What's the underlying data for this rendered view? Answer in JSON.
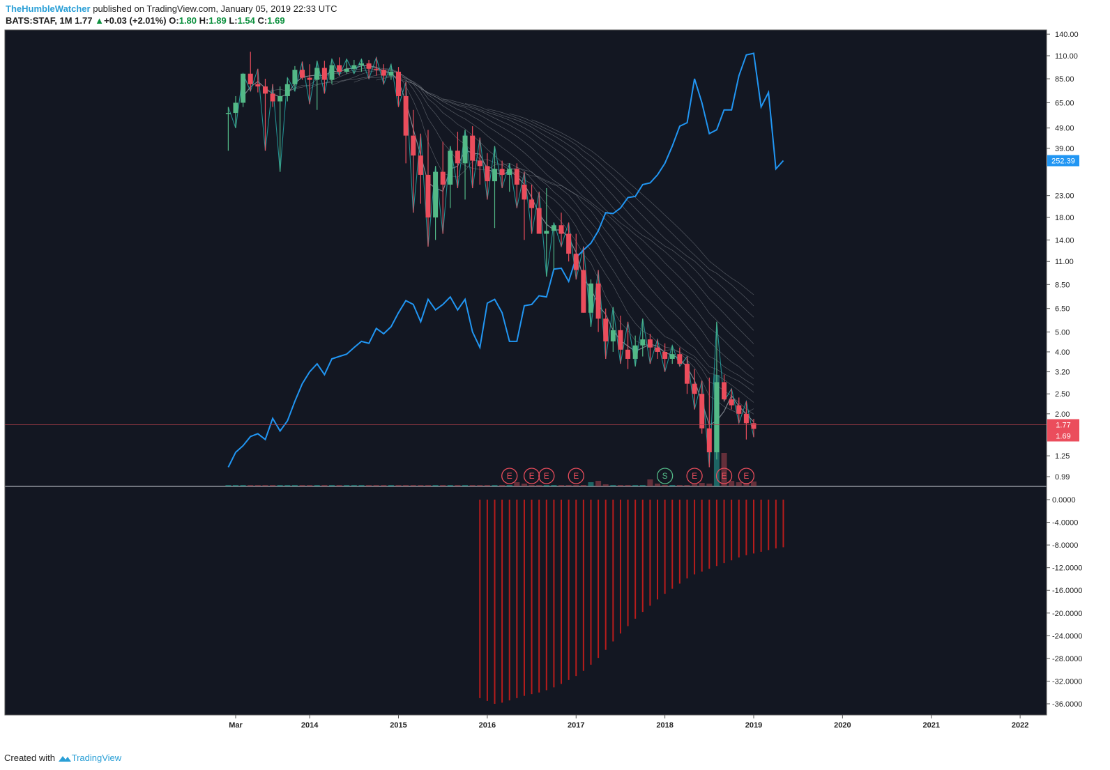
{
  "header": {
    "author": "TheHumbleWatcher",
    "published_text": "published on TradingView.com, January 05, 2019 22:33 UTC",
    "symbol": "BATS:STAF, 1M",
    "last": "1.77",
    "change": "+0.03 (+2.01%)",
    "o_label": "O:",
    "o": "1.80",
    "h_label": "H:",
    "h": "1.89",
    "l_label": "L:",
    "l": "1.54",
    "c_label": "C:",
    "c": "1.69"
  },
  "footer": {
    "created_with": "Created with",
    "brand": "TradingView"
  },
  "colors": {
    "background": "#131722",
    "up": "#53b987",
    "down": "#eb4d5c",
    "overlay_line": "#2196f3",
    "zigzag": "#26a6a6",
    "ma": "#8a8f98",
    "histogram": "#b71c1c",
    "last_price_tag": "#eb4d5c",
    "overlay_tag": "#2196f3"
  },
  "chart_data": {
    "type": "candlestick",
    "timeframe": "1M",
    "y_scale": "log",
    "y_ticks": [
      140,
      110,
      85,
      65,
      49,
      39,
      23,
      18,
      14,
      11,
      8.5,
      6.5,
      5,
      4,
      3.2,
      2.5,
      2,
      1.25,
      0.99
    ],
    "y_tick_labels": [
      "140.00",
      "110.00",
      "85.00",
      "65.00",
      "49.00",
      "39.00",
      "23.00",
      "18.00",
      "14.00",
      "11.00",
      "8.50",
      "6.50",
      "5.00",
      "4.00",
      "3.20",
      "2.50",
      "2.00",
      "1.25",
      "0.99"
    ],
    "x_ticks": [
      {
        "label": "Mar",
        "date": "2013-03"
      },
      {
        "label": "2014",
        "date": "2014-01"
      },
      {
        "label": "2015",
        "date": "2015-01"
      },
      {
        "label": "2016",
        "date": "2016-01"
      },
      {
        "label": "2017",
        "date": "2017-01"
      },
      {
        "label": "2018",
        "date": "2018-01"
      },
      {
        "label": "2019",
        "date": "2019-01"
      },
      {
        "label": "2020",
        "date": "2020-01"
      },
      {
        "label": "2021",
        "date": "2021-01"
      },
      {
        "label": "2022",
        "date": "2022-01"
      }
    ],
    "price_tags": [
      {
        "label": "1.77",
        "value": 1.77,
        "color": "#eb4d5c"
      },
      {
        "label": "1.69",
        "value": 1.69,
        "color": "#eb4d5c"
      },
      {
        "label": "252.39",
        "value": 34,
        "color": "#2196f3"
      }
    ],
    "last_price_line": 1.77,
    "candles": [
      {
        "date": "2013-02",
        "o": 58,
        "h": 62,
        "l": 38,
        "c": 58
      },
      {
        "date": "2013-03",
        "o": 58,
        "h": 70,
        "l": 49,
        "c": 65
      },
      {
        "date": "2013-04",
        "o": 65,
        "h": 90,
        "l": 62,
        "c": 90
      },
      {
        "date": "2013-05",
        "o": 90,
        "h": 115,
        "l": 74,
        "c": 80
      },
      {
        "date": "2013-06",
        "o": 80,
        "h": 95,
        "l": 73,
        "c": 78
      },
      {
        "date": "2013-07",
        "o": 78,
        "h": 85,
        "l": 38,
        "c": 72
      },
      {
        "date": "2013-08",
        "o": 72,
        "h": 80,
        "l": 62,
        "c": 66
      },
      {
        "date": "2013-09",
        "o": 66,
        "h": 78,
        "l": 30,
        "c": 70
      },
      {
        "date": "2013-10",
        "o": 70,
        "h": 86,
        "l": 66,
        "c": 80
      },
      {
        "date": "2013-11",
        "o": 80,
        "h": 98,
        "l": 74,
        "c": 94
      },
      {
        "date": "2013-12",
        "o": 94,
        "h": 103,
        "l": 84,
        "c": 86
      },
      {
        "date": "2014-01",
        "o": 86,
        "h": 100,
        "l": 64,
        "c": 84
      },
      {
        "date": "2014-02",
        "o": 84,
        "h": 104,
        "l": 60,
        "c": 96
      },
      {
        "date": "2014-03",
        "o": 96,
        "h": 104,
        "l": 72,
        "c": 84
      },
      {
        "date": "2014-04",
        "o": 84,
        "h": 106,
        "l": 80,
        "c": 99
      },
      {
        "date": "2014-05",
        "o": 99,
        "h": 108,
        "l": 88,
        "c": 92
      },
      {
        "date": "2014-06",
        "o": 92,
        "h": 106,
        "l": 90,
        "c": 95
      },
      {
        "date": "2014-07",
        "o": 95,
        "h": 105,
        "l": 90,
        "c": 99
      },
      {
        "date": "2014-08",
        "o": 99,
        "h": 106,
        "l": 92,
        "c": 101
      },
      {
        "date": "2014-09",
        "o": 101,
        "h": 105,
        "l": 85,
        "c": 95
      },
      {
        "date": "2014-10",
        "o": 95,
        "h": 108,
        "l": 88,
        "c": 94
      },
      {
        "date": "2014-11",
        "o": 94,
        "h": 100,
        "l": 80,
        "c": 88
      },
      {
        "date": "2014-12",
        "o": 88,
        "h": 100,
        "l": 84,
        "c": 92
      },
      {
        "date": "2015-01",
        "o": 92,
        "h": 97,
        "l": 62,
        "c": 70
      },
      {
        "date": "2015-02",
        "o": 70,
        "h": 82,
        "l": 33,
        "c": 45
      },
      {
        "date": "2015-03",
        "o": 45,
        "h": 60,
        "l": 19,
        "c": 36
      },
      {
        "date": "2015-04",
        "o": 36,
        "h": 46,
        "l": 21,
        "c": 29
      },
      {
        "date": "2015-05",
        "o": 29,
        "h": 48,
        "l": 13,
        "c": 18
      },
      {
        "date": "2015-06",
        "o": 18,
        "h": 32,
        "l": 14,
        "c": 30
      },
      {
        "date": "2015-07",
        "o": 30,
        "h": 42,
        "l": 15,
        "c": 26
      },
      {
        "date": "2015-08",
        "o": 26,
        "h": 40,
        "l": 20,
        "c": 38
      },
      {
        "date": "2015-09",
        "o": 38,
        "h": 47,
        "l": 25,
        "c": 33
      },
      {
        "date": "2015-10",
        "o": 33,
        "h": 48,
        "l": 22,
        "c": 45
      },
      {
        "date": "2015-11",
        "o": 45,
        "h": 50,
        "l": 25,
        "c": 34
      },
      {
        "date": "2015-12",
        "o": 34,
        "h": 44,
        "l": 26,
        "c": 32
      },
      {
        "date": "2016-01",
        "o": 32,
        "h": 37,
        "l": 22,
        "c": 27
      },
      {
        "date": "2016-02",
        "o": 27,
        "h": 40,
        "l": 16,
        "c": 31
      },
      {
        "date": "2016-03",
        "o": 31,
        "h": 34,
        "l": 25,
        "c": 29
      },
      {
        "date": "2016-04",
        "o": 29,
        "h": 33,
        "l": 24,
        "c": 31
      },
      {
        "date": "2016-05",
        "o": 31,
        "h": 33,
        "l": 20,
        "c": 26
      },
      {
        "date": "2016-06",
        "o": 26,
        "h": 30,
        "l": 14,
        "c": 22
      },
      {
        "date": "2016-07",
        "o": 22,
        "h": 26,
        "l": 15,
        "c": 20
      },
      {
        "date": "2016-08",
        "o": 20,
        "h": 24,
        "l": 15,
        "c": 15
      },
      {
        "date": "2016-09",
        "o": 15,
        "h": 25,
        "l": 9.3,
        "c": 15.5
      },
      {
        "date": "2016-10",
        "o": 15.5,
        "h": 17,
        "l": 10,
        "c": 16.5
      },
      {
        "date": "2016-11",
        "o": 16.5,
        "h": 19,
        "l": 13,
        "c": 15
      },
      {
        "date": "2016-12",
        "o": 15,
        "h": 17,
        "l": 11,
        "c": 12
      },
      {
        "date": "2017-01",
        "o": 12,
        "h": 15,
        "l": 9,
        "c": 10
      },
      {
        "date": "2017-02",
        "o": 10,
        "h": 13,
        "l": 6.2,
        "c": 6.2
      },
      {
        "date": "2017-03",
        "o": 6.2,
        "h": 9,
        "l": 5.3,
        "c": 8.6
      },
      {
        "date": "2017-04",
        "o": 8.6,
        "h": 10,
        "l": 5,
        "c": 5.8
      },
      {
        "date": "2017-05",
        "o": 5.8,
        "h": 6.5,
        "l": 3.7,
        "c": 4.5
      },
      {
        "date": "2017-06",
        "o": 4.5,
        "h": 6.6,
        "l": 4,
        "c": 5.1
      },
      {
        "date": "2017-07",
        "o": 5.1,
        "h": 6,
        "l": 3.5,
        "c": 4.1
      },
      {
        "date": "2017-08",
        "o": 4.1,
        "h": 5.6,
        "l": 3.3,
        "c": 3.7
      },
      {
        "date": "2017-09",
        "o": 3.7,
        "h": 4.8,
        "l": 3.4,
        "c": 4.3
      },
      {
        "date": "2017-10",
        "o": 4.3,
        "h": 5.8,
        "l": 3.8,
        "c": 4.6
      },
      {
        "date": "2017-11",
        "o": 4.6,
        "h": 4.9,
        "l": 3.5,
        "c": 4.2
      },
      {
        "date": "2017-12",
        "o": 4.2,
        "h": 4.6,
        "l": 3.7,
        "c": 4
      },
      {
        "date": "2018-01",
        "o": 4,
        "h": 4.4,
        "l": 3.2,
        "c": 3.7
      },
      {
        "date": "2018-02",
        "o": 3.7,
        "h": 4.3,
        "l": 3.5,
        "c": 3.9
      },
      {
        "date": "2018-03",
        "o": 3.9,
        "h": 4.2,
        "l": 3.4,
        "c": 3.5
      },
      {
        "date": "2018-04",
        "o": 3.5,
        "h": 3.8,
        "l": 2.5,
        "c": 2.8
      },
      {
        "date": "2018-05",
        "o": 2.8,
        "h": 3.3,
        "l": 2.1,
        "c": 2.5
      },
      {
        "date": "2018-06",
        "o": 2.5,
        "h": 2.9,
        "l": 1.6,
        "c": 1.7
      },
      {
        "date": "2018-07",
        "o": 1.7,
        "h": 3,
        "l": 1.1,
        "c": 1.3
      },
      {
        "date": "2018-08",
        "o": 1.3,
        "h": 5.6,
        "l": 1.2,
        "c": 2.85
      },
      {
        "date": "2018-09",
        "o": 2.85,
        "h": 3.1,
        "l": 2.3,
        "c": 2.35
      },
      {
        "date": "2018-10",
        "o": 2.35,
        "h": 2.65,
        "l": 2.1,
        "c": 2.2
      },
      {
        "date": "2018-11",
        "o": 2.2,
        "h": 2.4,
        "l": 1.8,
        "c": 2
      },
      {
        "date": "2018-12",
        "o": 2,
        "h": 2.3,
        "l": 1.5,
        "c": 1.8
      },
      {
        "date": "2019-01",
        "o": 1.8,
        "h": 1.89,
        "l": 1.54,
        "c": 1.69
      }
    ],
    "overlay_line": {
      "name": "",
      "points": [
        [
          "2013-02",
          1.1
        ],
        [
          "2013-03",
          1.3
        ],
        [
          "2013-04",
          1.4
        ],
        [
          "2013-05",
          1.55
        ],
        [
          "2013-06",
          1.6
        ],
        [
          "2013-07",
          1.5
        ],
        [
          "2013-08",
          1.9
        ],
        [
          "2013-09",
          1.65
        ],
        [
          "2013-10",
          1.85
        ],
        [
          "2013-11",
          2.3
        ],
        [
          "2013-12",
          2.8
        ],
        [
          "2014-01",
          3.2
        ],
        [
          "2014-02",
          3.5
        ],
        [
          "2014-03",
          3.1
        ],
        [
          "2014-04",
          3.7
        ],
        [
          "2014-05",
          3.8
        ],
        [
          "2014-06",
          3.9
        ],
        [
          "2014-07",
          4.2
        ],
        [
          "2014-08",
          4.5
        ],
        [
          "2014-09",
          4.4
        ],
        [
          "2014-10",
          5.2
        ],
        [
          "2014-11",
          4.9
        ],
        [
          "2014-12",
          5.3
        ],
        [
          "2015-01",
          6.2
        ],
        [
          "2015-02",
          7.1
        ],
        [
          "2015-03",
          6.8
        ],
        [
          "2015-04",
          5.6
        ],
        [
          "2015-05",
          7.2
        ],
        [
          "2015-06",
          6.4
        ],
        [
          "2015-07",
          6.8
        ],
        [
          "2015-08",
          7.4
        ],
        [
          "2015-09",
          6.4
        ],
        [
          "2015-10",
          7.2
        ],
        [
          "2015-11",
          5.0
        ],
        [
          "2015-12",
          4.2
        ],
        [
          "2016-01",
          6.9
        ],
        [
          "2016-02",
          7.2
        ],
        [
          "2016-03",
          6.2
        ],
        [
          "2016-04",
          4.5
        ],
        [
          "2016-05",
          4.5
        ],
        [
          "2016-06",
          6.7
        ],
        [
          "2016-07",
          6.8
        ],
        [
          "2016-08",
          7.5
        ],
        [
          "2016-09",
          7.4
        ],
        [
          "2016-10",
          10.1
        ],
        [
          "2016-11",
          10.2
        ],
        [
          "2016-12",
          8.8
        ],
        [
          "2017-01",
          11.5
        ],
        [
          "2017-02",
          12.5
        ],
        [
          "2017-03",
          13.5
        ],
        [
          "2017-04",
          15.5
        ],
        [
          "2017-05",
          19
        ],
        [
          "2017-06",
          18.8
        ],
        [
          "2017-07",
          20
        ],
        [
          "2017-08",
          22.5
        ],
        [
          "2017-09",
          22.8
        ],
        [
          "2017-10",
          26
        ],
        [
          "2017-11",
          26.5
        ],
        [
          "2017-12",
          29
        ],
        [
          "2018-01",
          33
        ],
        [
          "2018-02",
          40
        ],
        [
          "2018-03",
          50
        ],
        [
          "2018-04",
          52
        ],
        [
          "2018-05",
          85
        ],
        [
          "2018-06",
          65
        ],
        [
          "2018-07",
          46
        ],
        [
          "2018-08",
          48
        ],
        [
          "2018-09",
          60
        ],
        [
          "2018-10",
          60
        ],
        [
          "2018-11",
          88
        ],
        [
          "2018-12",
          111
        ],
        [
          "2019-01",
          113
        ],
        [
          "2019-02",
          62
        ],
        [
          "2019-03",
          73
        ],
        [
          "2019-04",
          31
        ],
        [
          "2019-05",
          34
        ]
      ]
    },
    "events": [
      {
        "label": "E",
        "date": "2016-04",
        "kind": "earnings"
      },
      {
        "label": "E",
        "date": "2016-07",
        "kind": "earnings"
      },
      {
        "label": "E",
        "date": "2016-09",
        "kind": "earnings"
      },
      {
        "label": "E",
        "date": "2017-01",
        "kind": "earnings"
      },
      {
        "label": "S",
        "date": "2018-01",
        "kind": "split"
      },
      {
        "label": "E",
        "date": "2018-05",
        "kind": "earnings"
      },
      {
        "label": "E",
        "date": "2018-09",
        "kind": "earnings"
      },
      {
        "label": "E",
        "date": "2018-12",
        "kind": "earnings"
      }
    ],
    "oscillator": {
      "type": "histogram",
      "y_ticks": [
        0,
        -4,
        -8,
        -12,
        -16,
        -20,
        -24,
        -28,
        -32,
        -36
      ],
      "y_tick_labels": [
        "0.0000",
        "-4.0000",
        "-8.0000",
        "-12.0000",
        "-16.0000",
        "-20.0000",
        "-24.0000",
        "-28.0000",
        "-32.0000",
        "-36.0000"
      ],
      "start_date": "2015-12",
      "values": [
        -35,
        -35.5,
        -36,
        -35.8,
        -35.4,
        -35,
        -34.6,
        -34.3,
        -34,
        -33.6,
        -33.1,
        -32.5,
        -31.8,
        -31.1,
        -30.2,
        -29.1,
        -27.9,
        -26.5,
        -25,
        -23.6,
        -22.3,
        -21,
        -19.8,
        -18.7,
        -17.6,
        -16.6,
        -15.7,
        -14.8,
        -13.9,
        -13.2,
        -12.7,
        -12.2,
        -11.7,
        -11.2,
        -10.7,
        -10.2,
        -9.8,
        -9.5,
        -9.2,
        -8.9,
        -8.6,
        -8.4
      ]
    }
  }
}
